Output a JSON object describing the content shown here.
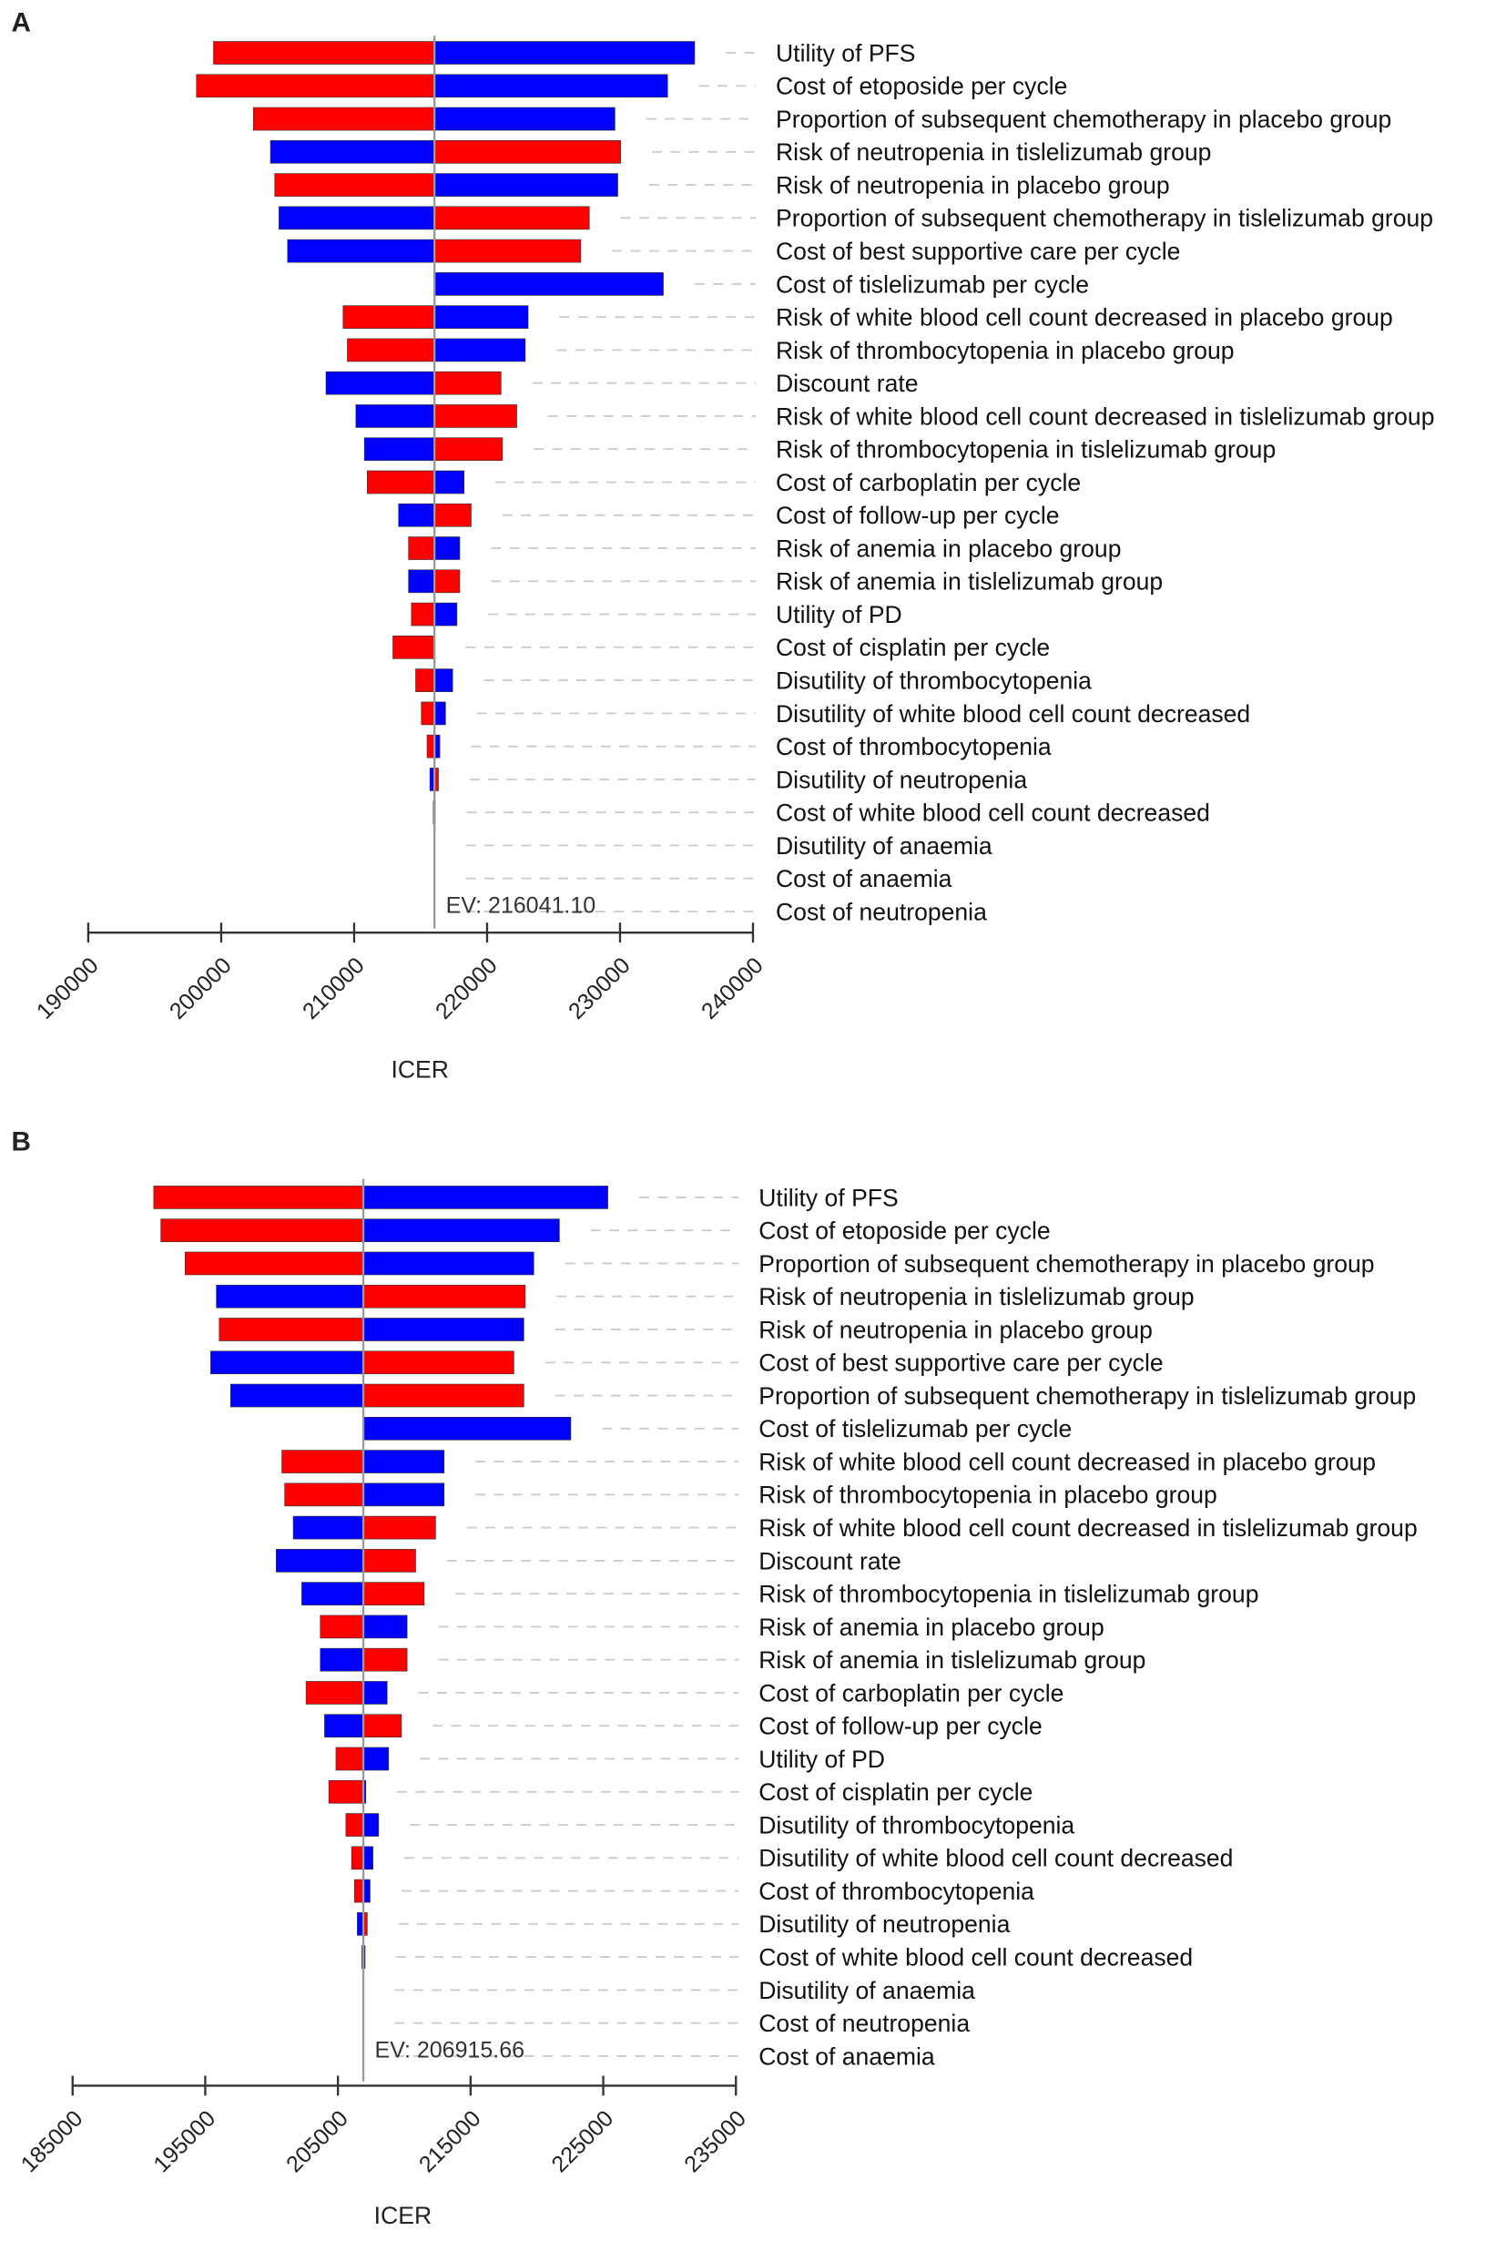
{
  "colors": {
    "red": "#ff0000",
    "blue": "#0000ff",
    "ev_line": "#999999",
    "guide": "#cccccc"
  },
  "chart_data": [
    {
      "type": "tornado",
      "panel": "A",
      "xlabel": "ICER",
      "xlim": [
        190000,
        240000
      ],
      "ticks": [
        "190000",
        "200000",
        "210000",
        "220000",
        "230000",
        "240000"
      ],
      "ev": 216041.1,
      "ev_label": "EV: 216041.10",
      "rows": [
        {
          "label": "Utility of PFS",
          "left": 199422,
          "right": 235611,
          "left_color": "red"
        },
        {
          "label": "Cost of etoposide per cycle",
          "left": 198137,
          "right": 233578,
          "left_color": "red"
        },
        {
          "label": "Proportion of subsequent chemotherapy in placebo group",
          "left": 202420,
          "right": 229616,
          "left_color": "red"
        },
        {
          "label": "Risk of neutropenia in tislelizumab group",
          "left": 203705,
          "right": 230044,
          "left_color": "blue"
        },
        {
          "label": "Risk of neutropenia in placebo group",
          "left": 204026,
          "right": 229830,
          "left_color": "red"
        },
        {
          "label": "Proportion of subsequent chemotherapy in tislelizumab group",
          "left": 204347,
          "right": 227688,
          "left_color": "blue"
        },
        {
          "label": "Cost of best supportive care per cycle",
          "left": 204990,
          "right": 227046,
          "left_color": "blue"
        },
        {
          "label": "Cost of tislelizumab per cycle",
          "left": 216041,
          "right": 233257,
          "left_color": "red"
        },
        {
          "label": "Risk of white blood cell count decreased in placebo group",
          "left": 209166,
          "right": 223085,
          "left_color": "red"
        },
        {
          "label": "Risk of thrombocytopenia in placebo group",
          "left": 209487,
          "right": 222871,
          "left_color": "red"
        },
        {
          "label": "Discount rate",
          "left": 207881,
          "right": 221050,
          "left_color": "blue"
        },
        {
          "label": "Risk of white blood cell count decreased in tislelizumab group",
          "left": 210129,
          "right": 222229,
          "left_color": "blue"
        },
        {
          "label": "Risk of thrombocytopenia in tislelizumab group",
          "left": 210771,
          "right": 221157,
          "left_color": "blue"
        },
        {
          "label": "Cost of carboplatin per cycle",
          "left": 210986,
          "right": 218267,
          "left_color": "red"
        },
        {
          "label": "Cost of follow-up per cycle",
          "left": 213341,
          "right": 218802,
          "left_color": "blue"
        },
        {
          "label": "Risk of anemia in placebo group",
          "left": 214091,
          "right": 217945,
          "left_color": "red"
        },
        {
          "label": "Risk of anemia in tislelizumab group",
          "left": 214091,
          "right": 217945,
          "left_color": "blue"
        },
        {
          "label": "Utility of PD",
          "left": 214305,
          "right": 217731,
          "left_color": "red"
        },
        {
          "label": "Cost of cisplatin per cycle",
          "left": 212913,
          "right": 216041,
          "left_color": "red"
        },
        {
          "label": "Disutility of thrombocytopenia",
          "left": 214626,
          "right": 217410,
          "left_color": "red"
        },
        {
          "label": "Disutility of white blood cell count decreased",
          "left": 215054,
          "right": 216874,
          "left_color": "red"
        },
        {
          "label": "Cost of thrombocytopenia",
          "left": 215483,
          "right": 216446,
          "left_color": "red"
        },
        {
          "label": "Disutility of neutropenia",
          "left": 215697,
          "right": 216339,
          "left_color": "blue"
        },
        {
          "label": "Cost of white blood cell count decreased",
          "left": 215950,
          "right": 216100,
          "left_color": "red"
        },
        {
          "label": "Disutility of anaemia",
          "left": 216041,
          "right": 216041,
          "left_color": "red"
        },
        {
          "label": "Cost of anaemia",
          "left": 216041,
          "right": 216041,
          "left_color": "red"
        },
        {
          "label": "Cost of neutropenia",
          "left": 216041,
          "right": 216041,
          "left_color": "red"
        }
      ]
    },
    {
      "type": "tornado",
      "panel": "B",
      "xlabel": "ICER",
      "xlim": [
        185000,
        235000
      ],
      "ticks": [
        "185000",
        "195000",
        "205000",
        "215000",
        "225000",
        "235000"
      ],
      "ev": 206915.66,
      "ev_label": "EV: 206915.66",
      "rows": [
        {
          "label": "Utility of PFS",
          "left": 191116,
          "right": 225345,
          "left_color": "red"
        },
        {
          "label": "Cost of etoposide per cycle",
          "left": 191653,
          "right": 221697,
          "left_color": "red"
        },
        {
          "label": "Proportion of subsequent chemotherapy in placebo group",
          "left": 193477,
          "right": 219765,
          "left_color": "red"
        },
        {
          "label": "Risk of neutropenia in tislelizumab group",
          "left": 195837,
          "right": 219121,
          "left_color": "blue"
        },
        {
          "label": "Risk of neutropenia in placebo group",
          "left": 196052,
          "right": 219014,
          "left_color": "red"
        },
        {
          "label": "Cost of best supportive care per cycle",
          "left": 195408,
          "right": 218263,
          "left_color": "blue"
        },
        {
          "label": "Proportion of subsequent chemotherapy in tislelizumab group",
          "left": 196910,
          "right": 219014,
          "left_color": "blue"
        },
        {
          "label": "Cost of tislelizumab per cycle",
          "left": 206916,
          "right": 222555,
          "left_color": "red"
        },
        {
          "label": "Risk of white blood cell count decreased in placebo group",
          "left": 200773,
          "right": 213005,
          "left_color": "red"
        },
        {
          "label": "Risk of thrombocytopenia in placebo group",
          "left": 200988,
          "right": 213005,
          "left_color": "red"
        },
        {
          "label": "Risk of white blood cell count decreased in tislelizumab group",
          "left": 201632,
          "right": 212362,
          "left_color": "blue"
        },
        {
          "label": "Discount rate",
          "left": 200344,
          "right": 210859,
          "left_color": "blue"
        },
        {
          "label": "Risk of thrombocytopenia in tislelizumab group",
          "left": 202275,
          "right": 211503,
          "left_color": "blue"
        },
        {
          "label": "Risk of anemia in placebo group",
          "left": 203670,
          "right": 210216,
          "left_color": "red"
        },
        {
          "label": "Risk of anemia in tislelizumab group",
          "left": 203670,
          "right": 210216,
          "left_color": "blue"
        },
        {
          "label": "Cost of carboplatin per cycle",
          "left": 202597,
          "right": 208713,
          "left_color": "red"
        },
        {
          "label": "Cost of follow-up per cycle",
          "left": 203992,
          "right": 209787,
          "left_color": "blue"
        },
        {
          "label": "Utility of PD",
          "left": 204851,
          "right": 208820,
          "left_color": "red"
        },
        {
          "label": "Cost of cisplatin per cycle",
          "left": 204314,
          "right": 207104,
          "left_color": "red"
        },
        {
          "label": "Disutility of thrombocytopenia",
          "left": 205602,
          "right": 208069,
          "left_color": "red"
        },
        {
          "label": "Disutility of white blood cell count decreased",
          "left": 206031,
          "right": 207640,
          "left_color": "red"
        },
        {
          "label": "Cost of thrombocytopenia",
          "left": 206246,
          "right": 207426,
          "left_color": "red"
        },
        {
          "label": "Disutility of neutropenia",
          "left": 206460,
          "right": 207211,
          "left_color": "blue"
        },
        {
          "label": "Cost of white blood cell count decreased",
          "left": 206800,
          "right": 207050,
          "left_color": "red"
        },
        {
          "label": "Disutility of anaemia",
          "left": 206916,
          "right": 206916,
          "left_color": "red"
        },
        {
          "label": "Cost of neutropenia",
          "left": 206916,
          "right": 206916,
          "left_color": "red"
        },
        {
          "label": "Cost of anaemia",
          "left": 206916,
          "right": 206916,
          "left_color": "red"
        }
      ]
    }
  ]
}
